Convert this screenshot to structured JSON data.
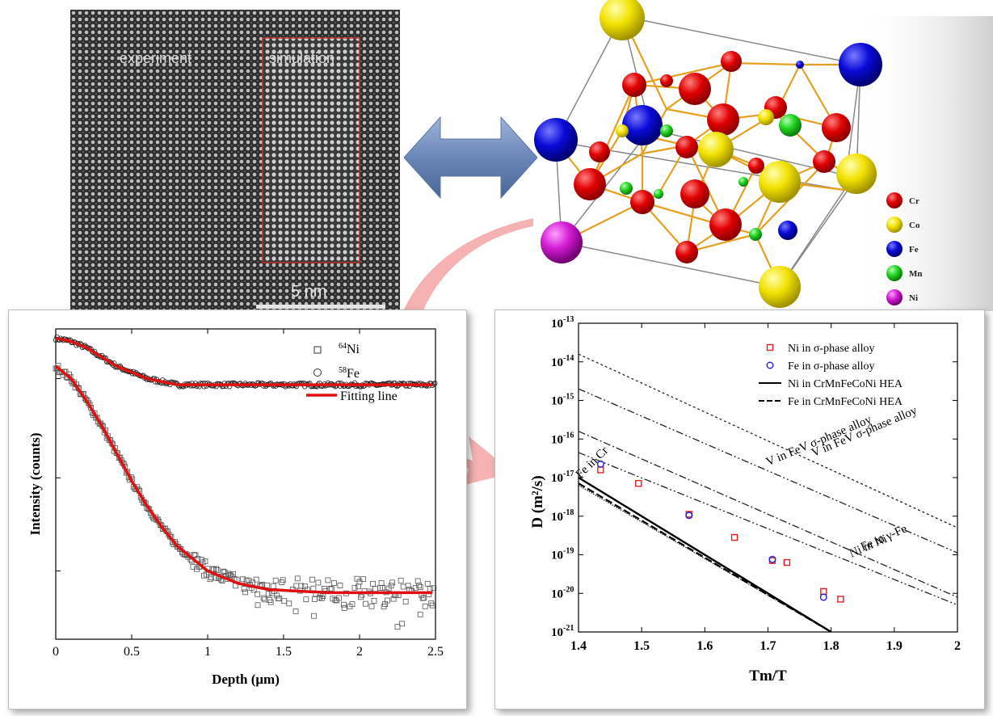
{
  "tem_image": {
    "label_experiment": "experiment",
    "label_simulation": "simulation",
    "scale_bar": "5 nm"
  },
  "crystal": {
    "legend": [
      {
        "label": "Cr",
        "color": "#e00000"
      },
      {
        "label": "Co",
        "color": "#f2e200"
      },
      {
        "label": "Fe",
        "color": "#0a0ad8"
      },
      {
        "label": "Mn",
        "color": "#22d322"
      },
      {
        "label": "Ni",
        "color": "#d21ad2"
      }
    ],
    "bond_color": "#e6a020"
  },
  "chart_data": [
    {
      "type": "scatter",
      "xlabel": "Depth (μm)",
      "ylabel": "Intensity (counts)",
      "xlim": [
        0,
        2.5
      ],
      "xticks": [
        "0",
        "0.5",
        "1",
        "1.5",
        "2",
        "2.5"
      ],
      "yscale": "log",
      "legend_position": "top-right",
      "series": [
        {
          "name": "Ni",
          "mass": "64",
          "marker": "square",
          "color": "#555555",
          "x": [
            0,
            0.1,
            0.2,
            0.3,
            0.4,
            0.5,
            0.6,
            0.7,
            0.8,
            0.9,
            1.0,
            1.1,
            1.2,
            1.3,
            1.4,
            1.6,
            1.8,
            2.0,
            2.2,
            2.5
          ],
          "y": [
            0.88,
            0.84,
            0.77,
            0.69,
            0.6,
            0.51,
            0.43,
            0.36,
            0.3,
            0.26,
            0.22,
            0.2,
            0.18,
            0.17,
            0.16,
            0.155,
            0.15,
            0.15,
            0.15,
            0.15
          ]
        },
        {
          "name": "Fe",
          "mass": "58",
          "marker": "circle",
          "color": "#222222",
          "x": [
            0,
            0.1,
            0.2,
            0.3,
            0.4,
            0.5,
            0.6,
            0.7,
            0.8,
            1.0,
            1.5,
            2.0,
            2.5
          ],
          "y": [
            0.97,
            0.96,
            0.94,
            0.91,
            0.88,
            0.86,
            0.84,
            0.83,
            0.82,
            0.82,
            0.82,
            0.82,
            0.82
          ]
        },
        {
          "name": "Fitting line",
          "marker": "line",
          "color": "#e01010"
        }
      ]
    },
    {
      "type": "scatter",
      "xlabel": "Tm/T",
      "ylabel": "D (m²/s)",
      "xlim": [
        1.4,
        2.0
      ],
      "xticks": [
        "1.4",
        "1.5",
        "1.6",
        "1.7",
        "1.8",
        "1.9",
        "2"
      ],
      "yscale": "log",
      "ylim": [
        1e-21,
        1e-13
      ],
      "yticks": [
        "-13",
        "-14",
        "-15",
        "-16",
        "-17",
        "-18",
        "-19",
        "-20",
        "-21"
      ],
      "ytick_base": "10",
      "legend_position": "top-right",
      "series": [
        {
          "name": "Ni in σ-phase alloy",
          "marker": "square",
          "color": "#e02020",
          "x": [
            1.435,
            1.495,
            1.575,
            1.647,
            1.707,
            1.73,
            1.788,
            1.815
          ],
          "y": [
            -16.8,
            -17.15,
            -17.95,
            -18.55,
            -19.15,
            -19.2,
            -19.95,
            -20.15
          ]
        },
        {
          "name": "Fe in σ-phase alloy",
          "marker": "circle",
          "color": "#2020e0",
          "x": [
            1.435,
            1.575,
            1.707,
            1.788
          ],
          "y": [
            -16.65,
            -17.98,
            -19.12,
            -20.1
          ]
        },
        {
          "name": "Ni in CrMnFeCoNi HEA",
          "marker": "solid-line",
          "color": "#000000",
          "x": [
            1.4,
            1.8
          ],
          "y": [
            -17.0,
            -21.0
          ]
        },
        {
          "name": "Fe in CrMnFeCoNi HEA",
          "marker": "dashed-line",
          "color": "#000000",
          "x": [
            1.4,
            1.8
          ],
          "y": [
            -17.15,
            -21.0
          ]
        }
      ],
      "annotations": [
        {
          "text": "V in FeV σ-phase alloy",
          "x1": 1.4,
          "y1": -13.8,
          "x2": 2.0,
          "y2": -18.3
        },
        {
          "text": "V in FeV σ-phase alloy",
          "x1": 1.4,
          "y1": -14.7,
          "x2": 2.0,
          "y2": -18.95
        },
        {
          "text": "Fe in γ-Fe",
          "x1": 1.4,
          "y1": -15.8,
          "x2": 2.0,
          "y2": -20.1
        },
        {
          "text": "Ni in Ni",
          "x1": 1.4,
          "y1": -16.35,
          "x2": 2.0,
          "y2": -20.3
        },
        {
          "text": "Fe in Cr",
          "x1": 1.4,
          "y1": -17.2,
          "x2": 1.8,
          "y2": -21.0
        }
      ]
    }
  ]
}
